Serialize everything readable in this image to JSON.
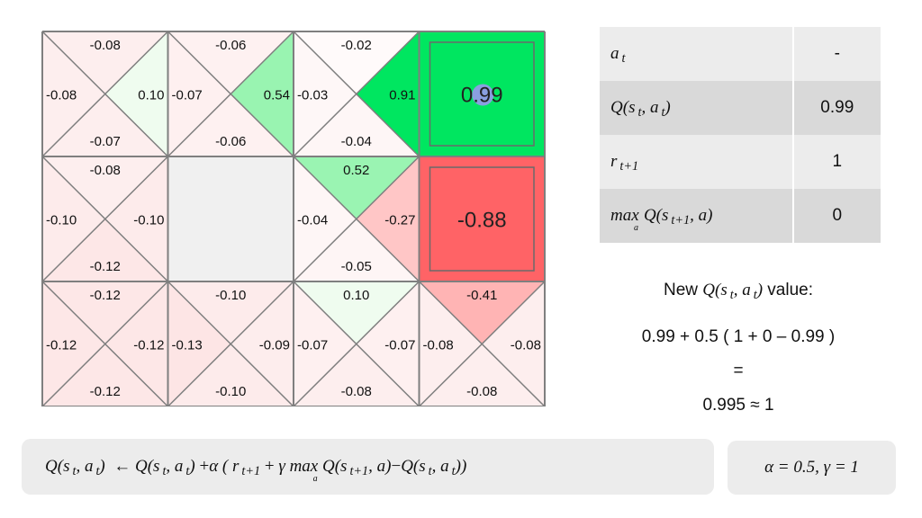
{
  "grid": {
    "cells": [
      {
        "id": "r0c0",
        "type": "q",
        "q": {
          "top": "-0.08",
          "right": "0.10",
          "bottom": "-0.07",
          "left": "-0.08"
        },
        "fills": {
          "top": "#fdeeee",
          "right": "#effcef",
          "bottom": "#fdeeee",
          "left": "#fdeeee"
        }
      },
      {
        "id": "r0c1",
        "type": "q",
        "q": {
          "top": "-0.06",
          "right": "0.54",
          "bottom": "-0.06",
          "left": "-0.07"
        },
        "fills": {
          "top": "#fef1f1",
          "right": "#99f4b1",
          "bottom": "#fef1f1",
          "left": "#fef0f0"
        }
      },
      {
        "id": "r0c2",
        "type": "q",
        "q": {
          "top": "-0.02",
          "right": "0.91",
          "bottom": "-0.04",
          "left": "-0.03"
        },
        "fills": {
          "top": "#fffafa",
          "right": "#00e660",
          "bottom": "#fef6f6",
          "left": "#fef7f7"
        }
      },
      {
        "id": "r0c3",
        "type": "terminal",
        "value": "0.99",
        "color": "#00e660",
        "agent": true
      },
      {
        "id": "r1c0",
        "type": "q",
        "q": {
          "top": "-0.08",
          "right": "-0.10",
          "bottom": "-0.12",
          "left": "-0.10"
        },
        "fills": {
          "top": "#fdeeee",
          "right": "#fdebeb",
          "bottom": "#fde7e7",
          "left": "#fdebeb"
        }
      },
      {
        "id": "r1c1",
        "type": "wall",
        "color": "#f0f0f0"
      },
      {
        "id": "r1c2",
        "type": "q",
        "q": {
          "top": "0.52",
          "right": "-0.27",
          "bottom": "-0.05",
          "left": "-0.04"
        },
        "fills": {
          "top": "#9af4b2",
          "right": "#ffc6c6",
          "bottom": "#fef5f5",
          "left": "#fef6f6"
        }
      },
      {
        "id": "r1c3",
        "type": "terminal",
        "value": "-0.88",
        "color": "#ff6366",
        "agent": false
      },
      {
        "id": "r2c0",
        "type": "q",
        "q": {
          "top": "-0.12",
          "right": "-0.12",
          "bottom": "-0.12",
          "left": "-0.12"
        },
        "fills": {
          "top": "#fde7e7",
          "right": "#fde7e7",
          "bottom": "#fde7e7",
          "left": "#fde7e7"
        }
      },
      {
        "id": "r2c1",
        "type": "q",
        "q": {
          "top": "-0.10",
          "right": "-0.09",
          "bottom": "-0.10",
          "left": "-0.13"
        },
        "fills": {
          "top": "#fdebeb",
          "right": "#fdeded",
          "bottom": "#fdebeb",
          "left": "#fde5e5"
        }
      },
      {
        "id": "r2c2",
        "type": "q",
        "q": {
          "top": "0.10",
          "right": "-0.07",
          "bottom": "-0.08",
          "left": "-0.07"
        },
        "fills": {
          "top": "#effcef",
          "right": "#fef0f0",
          "bottom": "#fdeeee",
          "left": "#fef0f0"
        }
      },
      {
        "id": "r2c3",
        "type": "q",
        "q": {
          "top": "-0.41",
          "right": "-0.08",
          "bottom": "-0.08",
          "left": "-0.08"
        },
        "fills": {
          "top": "#ffb4b4",
          "right": "#fdeeee",
          "bottom": "#fdeeee",
          "left": "#fdeeee"
        }
      }
    ]
  },
  "table": {
    "rows": [
      {
        "label_sym": "a",
        "label_sub": "t",
        "value": "-"
      },
      {
        "label_pre": "Q(",
        "label_sym1": "s",
        "label_sub1": "t",
        "label_mid": ", ",
        "label_sym2": "a",
        "label_sub2": "t",
        "label_post": ")",
        "value": "0.99"
      },
      {
        "label_sym": "r",
        "label_sub": "t+1",
        "value": "1"
      },
      {
        "label_max": "max",
        "label_max_sub": "a",
        "label_pre": "Q(",
        "label_sym1": "s",
        "label_sub1": "t+1",
        "label_mid": ", ",
        "label_sym2": "a",
        "label_post": ")",
        "value": "0"
      }
    ]
  },
  "calc": {
    "new_prefix": "New",
    "new_suffix": "value:",
    "expression": "0.99 + 0.5 ( 1 + 0 – 0.99 )",
    "equals": "=",
    "result": "0.995 ≈ 1"
  },
  "formula": {
    "lhs_q": "Q(",
    "s": "s",
    "t": "t",
    "a": "a",
    "comma": ", ",
    "close": ")",
    "arrow": "←",
    "plus": "+",
    "alpha": "α",
    "open_paren": "(",
    "r": "r",
    "t1": "t+1",
    "gamma": "γ",
    "max": "max",
    "max_sub": "a",
    "minus": "−",
    "close_paren": ")"
  },
  "params": {
    "text": "α = 0.5,  γ = 1"
  },
  "colors": {
    "grid_line": "#7f7f7f",
    "agent_dot": "#8a9fe0"
  }
}
